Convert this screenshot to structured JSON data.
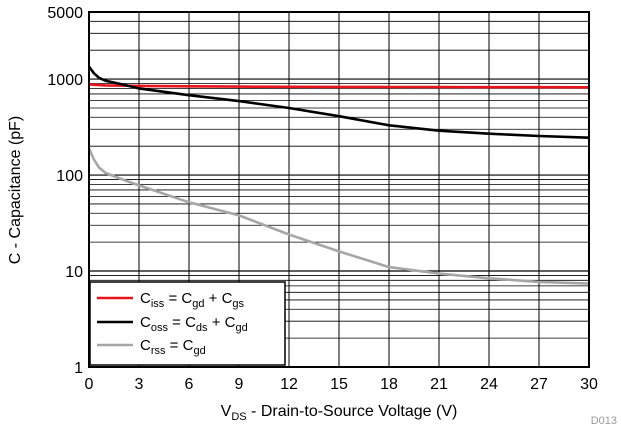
{
  "chart_data": {
    "type": "line",
    "xlabel": {
      "main": "V",
      "sub": "DS",
      "rest": " - Drain-to-Source Voltage (V)"
    },
    "ylabel": "C - Capacitance (pF)",
    "xlim": [
      0,
      30
    ],
    "ylim": [
      1,
      5000
    ],
    "yscale": "log",
    "grid": true,
    "legend_position": "bottom-left",
    "xticks": [
      0,
      3,
      6,
      9,
      12,
      15,
      18,
      21,
      24,
      27,
      30
    ],
    "xtick_labels": [
      "0",
      "3",
      "6",
      "9",
      "12",
      "15",
      "18",
      "21",
      "24",
      "27",
      "30"
    ],
    "yticks": [
      1,
      10,
      100,
      1000,
      5000
    ],
    "ytick_labels": [
      "1",
      "10",
      "100",
      "1000",
      "5000"
    ],
    "series": [
      {
        "key": "ciss",
        "color": "#e8141b",
        "legend": [
          {
            "t": "C"
          },
          {
            "t": "iss",
            "sub": true
          },
          {
            "t": " = C"
          },
          {
            "t": "gd",
            "sub": true
          },
          {
            "t": " + C"
          },
          {
            "t": "gs",
            "sub": true
          }
        ],
        "x": [
          0,
          0.5,
          1,
          3,
          6,
          9,
          12,
          15,
          18,
          21,
          24,
          27,
          30
        ],
        "y": [
          880,
          870,
          860,
          850,
          840,
          835,
          830,
          828,
          826,
          825,
          824,
          823,
          822
        ]
      },
      {
        "key": "coss",
        "color": "#000000",
        "legend": [
          {
            "t": "C"
          },
          {
            "t": "oss",
            "sub": true
          },
          {
            "t": " = C"
          },
          {
            "t": "ds",
            "sub": true
          },
          {
            "t": " + C"
          },
          {
            "t": "gd",
            "sub": true
          }
        ],
        "x": [
          0,
          0.3,
          0.6,
          1,
          2,
          3,
          6,
          9,
          12,
          15,
          18,
          21,
          24,
          27,
          30
        ],
        "y": [
          1350,
          1150,
          1030,
          960,
          880,
          800,
          680,
          590,
          500,
          410,
          330,
          290,
          270,
          255,
          245
        ]
      },
      {
        "key": "crss",
        "color": "#a6a6a6",
        "legend": [
          {
            "t": "C"
          },
          {
            "t": "rss",
            "sub": true
          },
          {
            "t": " = C"
          },
          {
            "t": "gd",
            "sub": true
          }
        ],
        "x": [
          0,
          0.3,
          0.6,
          1,
          2,
          3,
          6,
          9,
          12,
          15,
          18,
          21,
          24,
          27,
          30
        ],
        "y": [
          190,
          145,
          120,
          105,
          90,
          78,
          52,
          38,
          24,
          16,
          11,
          9.4,
          8.4,
          7.7,
          7.4
        ]
      }
    ]
  },
  "watermark": "D013"
}
